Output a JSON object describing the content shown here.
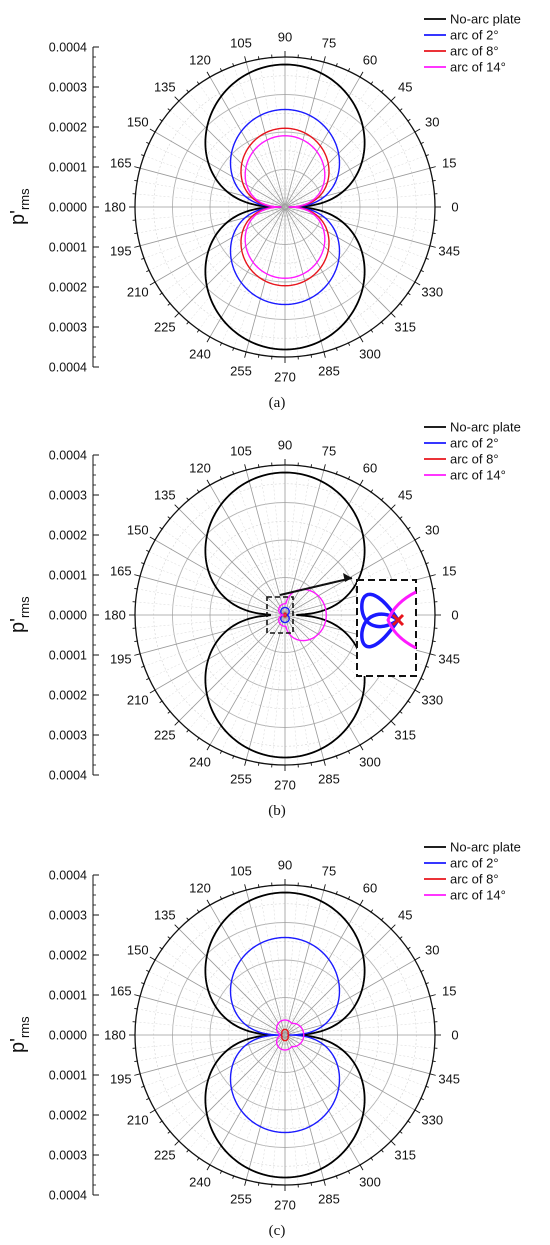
{
  "chart_data": [
    {
      "type": "polar-line",
      "caption": "(a)",
      "ylabel": "p'",
      "ylabel_sub": "rms",
      "r_ticks": [
        "0.0004",
        "0.0003",
        "0.0002",
        "0.0001",
        "0.0000",
        "0.0001",
        "0.0002",
        "0.0003",
        "0.0004"
      ],
      "r_max": 0.0004,
      "angle_ticks": [
        "0",
        "15",
        "30",
        "45",
        "60",
        "75",
        "90",
        "105",
        "120",
        "135",
        "150",
        "165",
        "180",
        "195",
        "210",
        "225",
        "240",
        "255",
        "270",
        "285",
        "300",
        "315",
        "330",
        "345"
      ],
      "legend_placement": "top-right",
      "series": [
        {
          "name": "No-arc plate",
          "color": "#000000",
          "r_peak_deg90": 0.00038,
          "r_peak_deg270": 0.00038,
          "r_at_0": 3e-05,
          "r_at_180": 4e-05
        },
        {
          "name": "arc of 2°",
          "color": "#1a1aff",
          "r_peak_deg90": 0.00026,
          "r_peak_deg270": 0.00026,
          "r_at_0": 1e-05,
          "r_at_180": 1e-05
        },
        {
          "name": "arc of 8°",
          "color": "#e8141c",
          "r_peak_deg90": 0.00021,
          "r_peak_deg270": 0.00021,
          "r_at_0": 1e-05,
          "r_at_180": 1e-05
        },
        {
          "name": "arc of 14°",
          "color": "#ff1aff",
          "r_peak_deg90": 0.00019,
          "r_peak_deg270": 0.00019,
          "r_at_0": 1e-05,
          "r_at_180": 1e-05
        }
      ]
    },
    {
      "type": "polar-line",
      "caption": "(b)",
      "ylabel": "p'",
      "ylabel_sub": "rms",
      "r_ticks": [
        "0.0004",
        "0.0003",
        "0.0002",
        "0.0001",
        "0.0000",
        "0.0001",
        "0.0002",
        "0.0003",
        "0.0004"
      ],
      "r_max": 0.0004,
      "angle_ticks": [
        "0",
        "15",
        "30",
        "45",
        "60",
        "75",
        "90",
        "105",
        "120",
        "135",
        "150",
        "165",
        "180",
        "195",
        "210",
        "225",
        "240",
        "255",
        "270",
        "285",
        "300",
        "315",
        "330",
        "345"
      ],
      "legend_placement": "top-right",
      "inset": "zoomed view of the region near the origin",
      "series": [
        {
          "name": "No-arc plate",
          "color": "#000000",
          "r_peak_deg90": 0.00038,
          "r_peak_deg270": 0.00038,
          "r_at_0": 3e-05,
          "r_at_180": 4e-05
        },
        {
          "name": "arc of 2°",
          "color": "#1a1aff",
          "r_peak_deg90": 2e-05,
          "r_peak_deg270": 2e-05,
          "r_at_0": 5e-06,
          "r_at_180": 5e-06
        },
        {
          "name": "arc of 8°",
          "color": "#e8141c",
          "r_peak_deg90": 5e-06,
          "r_peak_deg270": 5e-06,
          "r_at_0": 3e-06,
          "r_at_180": 3e-06
        },
        {
          "name": "arc of 14°",
          "color": "#ff1aff",
          "r_at_0": 0.00011,
          "r_at_180": 5e-06,
          "r_peak_deg90": 3e-05,
          "r_peak_deg270": 3e-05
        }
      ]
    },
    {
      "type": "polar-line",
      "caption": "(c)",
      "ylabel": "p'",
      "ylabel_sub": "rms",
      "r_ticks": [
        "0.0004",
        "0.0003",
        "0.0002",
        "0.0001",
        "0.0000",
        "0.0001",
        "0.0002",
        "0.0003",
        "0.0004"
      ],
      "r_max": 0.0004,
      "angle_ticks": [
        "0",
        "15",
        "30",
        "45",
        "60",
        "75",
        "90",
        "105",
        "120",
        "135",
        "150",
        "165",
        "180",
        "195",
        "210",
        "225",
        "240",
        "255",
        "270",
        "285",
        "300",
        "315",
        "330",
        "345"
      ],
      "legend_placement": "top-right",
      "series": [
        {
          "name": "No-arc plate",
          "color": "#000000",
          "r_peak_deg90": 0.00038,
          "r_peak_deg270": 0.00038,
          "r_at_0": 3e-05,
          "r_at_180": 4e-05
        },
        {
          "name": "arc of 2°",
          "color": "#1a1aff",
          "r_peak_deg90": 0.00026,
          "r_peak_deg270": 0.00026,
          "r_at_0": 1e-05,
          "r_at_180": 1e-05
        },
        {
          "name": "arc of 8°",
          "color": "#e8141c",
          "r_peak_deg90": 1.5e-05,
          "r_peak_deg270": 1.5e-05,
          "r_at_0": 1e-05,
          "r_at_180": 1e-05
        },
        {
          "name": "arc of 14°",
          "color": "#ff1aff",
          "r_at_0": 5e-05,
          "r_at_180": 1.5e-05,
          "r_peak_deg90": 4e-05,
          "r_peak_deg270": 4e-05
        }
      ]
    }
  ]
}
